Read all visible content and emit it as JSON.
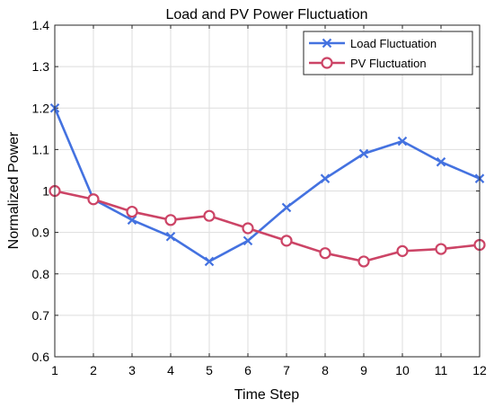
{
  "chart_data": {
    "type": "line",
    "title": "Load and PV Power Fluctuation",
    "xlabel": "Time Step",
    "ylabel": "Normalized Power",
    "x": [
      1,
      2,
      3,
      4,
      5,
      6,
      7,
      8,
      9,
      10,
      11,
      12
    ],
    "xlim": [
      1,
      12
    ],
    "ylim": [
      0.6,
      1.4
    ],
    "xticks": [
      "1",
      "2",
      "3",
      "4",
      "5",
      "6",
      "7",
      "8",
      "9",
      "10",
      "11",
      "12"
    ],
    "yticks": [
      "0.6",
      "0.7",
      "0.8",
      "0.9",
      "1",
      "1.1",
      "1.2",
      "1.3",
      "1.4"
    ],
    "grid": true,
    "legend_position": "top-right",
    "series": [
      {
        "name": "Load Fluctuation",
        "marker": "x",
        "color": "#4472e0",
        "values": [
          1.2,
          0.98,
          0.93,
          0.89,
          0.83,
          0.88,
          0.96,
          1.03,
          1.09,
          1.12,
          1.07,
          1.03
        ]
      },
      {
        "name": "PV Fluctuation",
        "marker": "circle",
        "color": "#cc4466",
        "values": [
          1.0,
          0.98,
          0.95,
          0.93,
          0.94,
          0.91,
          0.88,
          0.85,
          0.83,
          0.855,
          0.86,
          0.87
        ]
      }
    ]
  }
}
